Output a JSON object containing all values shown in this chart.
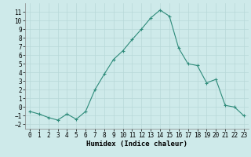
{
  "x": [
    0,
    1,
    2,
    3,
    4,
    5,
    6,
    7,
    8,
    9,
    10,
    11,
    12,
    13,
    14,
    15,
    16,
    17,
    18,
    19,
    20,
    21,
    22,
    23
  ],
  "y": [
    -0.5,
    -0.8,
    -1.2,
    -1.5,
    -0.8,
    -1.4,
    -0.5,
    2.0,
    3.8,
    5.5,
    6.5,
    7.8,
    9.0,
    10.3,
    11.2,
    10.5,
    6.8,
    5.0,
    4.8,
    2.8,
    3.2,
    0.2,
    0.0,
    -1.0
  ],
  "xlabel": "Humidex (Indice chaleur)",
  "xlim": [
    -0.5,
    23.5
  ],
  "ylim": [
    -2.5,
    12.0
  ],
  "yticks": [
    -2,
    -1,
    0,
    1,
    2,
    3,
    4,
    5,
    6,
    7,
    8,
    9,
    10,
    11
  ],
  "xticks": [
    0,
    1,
    2,
    3,
    4,
    5,
    6,
    7,
    8,
    9,
    10,
    11,
    12,
    13,
    14,
    15,
    16,
    17,
    18,
    19,
    20,
    21,
    22,
    23
  ],
  "line_color": "#2e8b7a",
  "marker": "+",
  "bg_color": "#ceeaea",
  "grid_color": "#b8d8d8",
  "tick_fontsize": 5.5,
  "label_fontsize": 6.5
}
